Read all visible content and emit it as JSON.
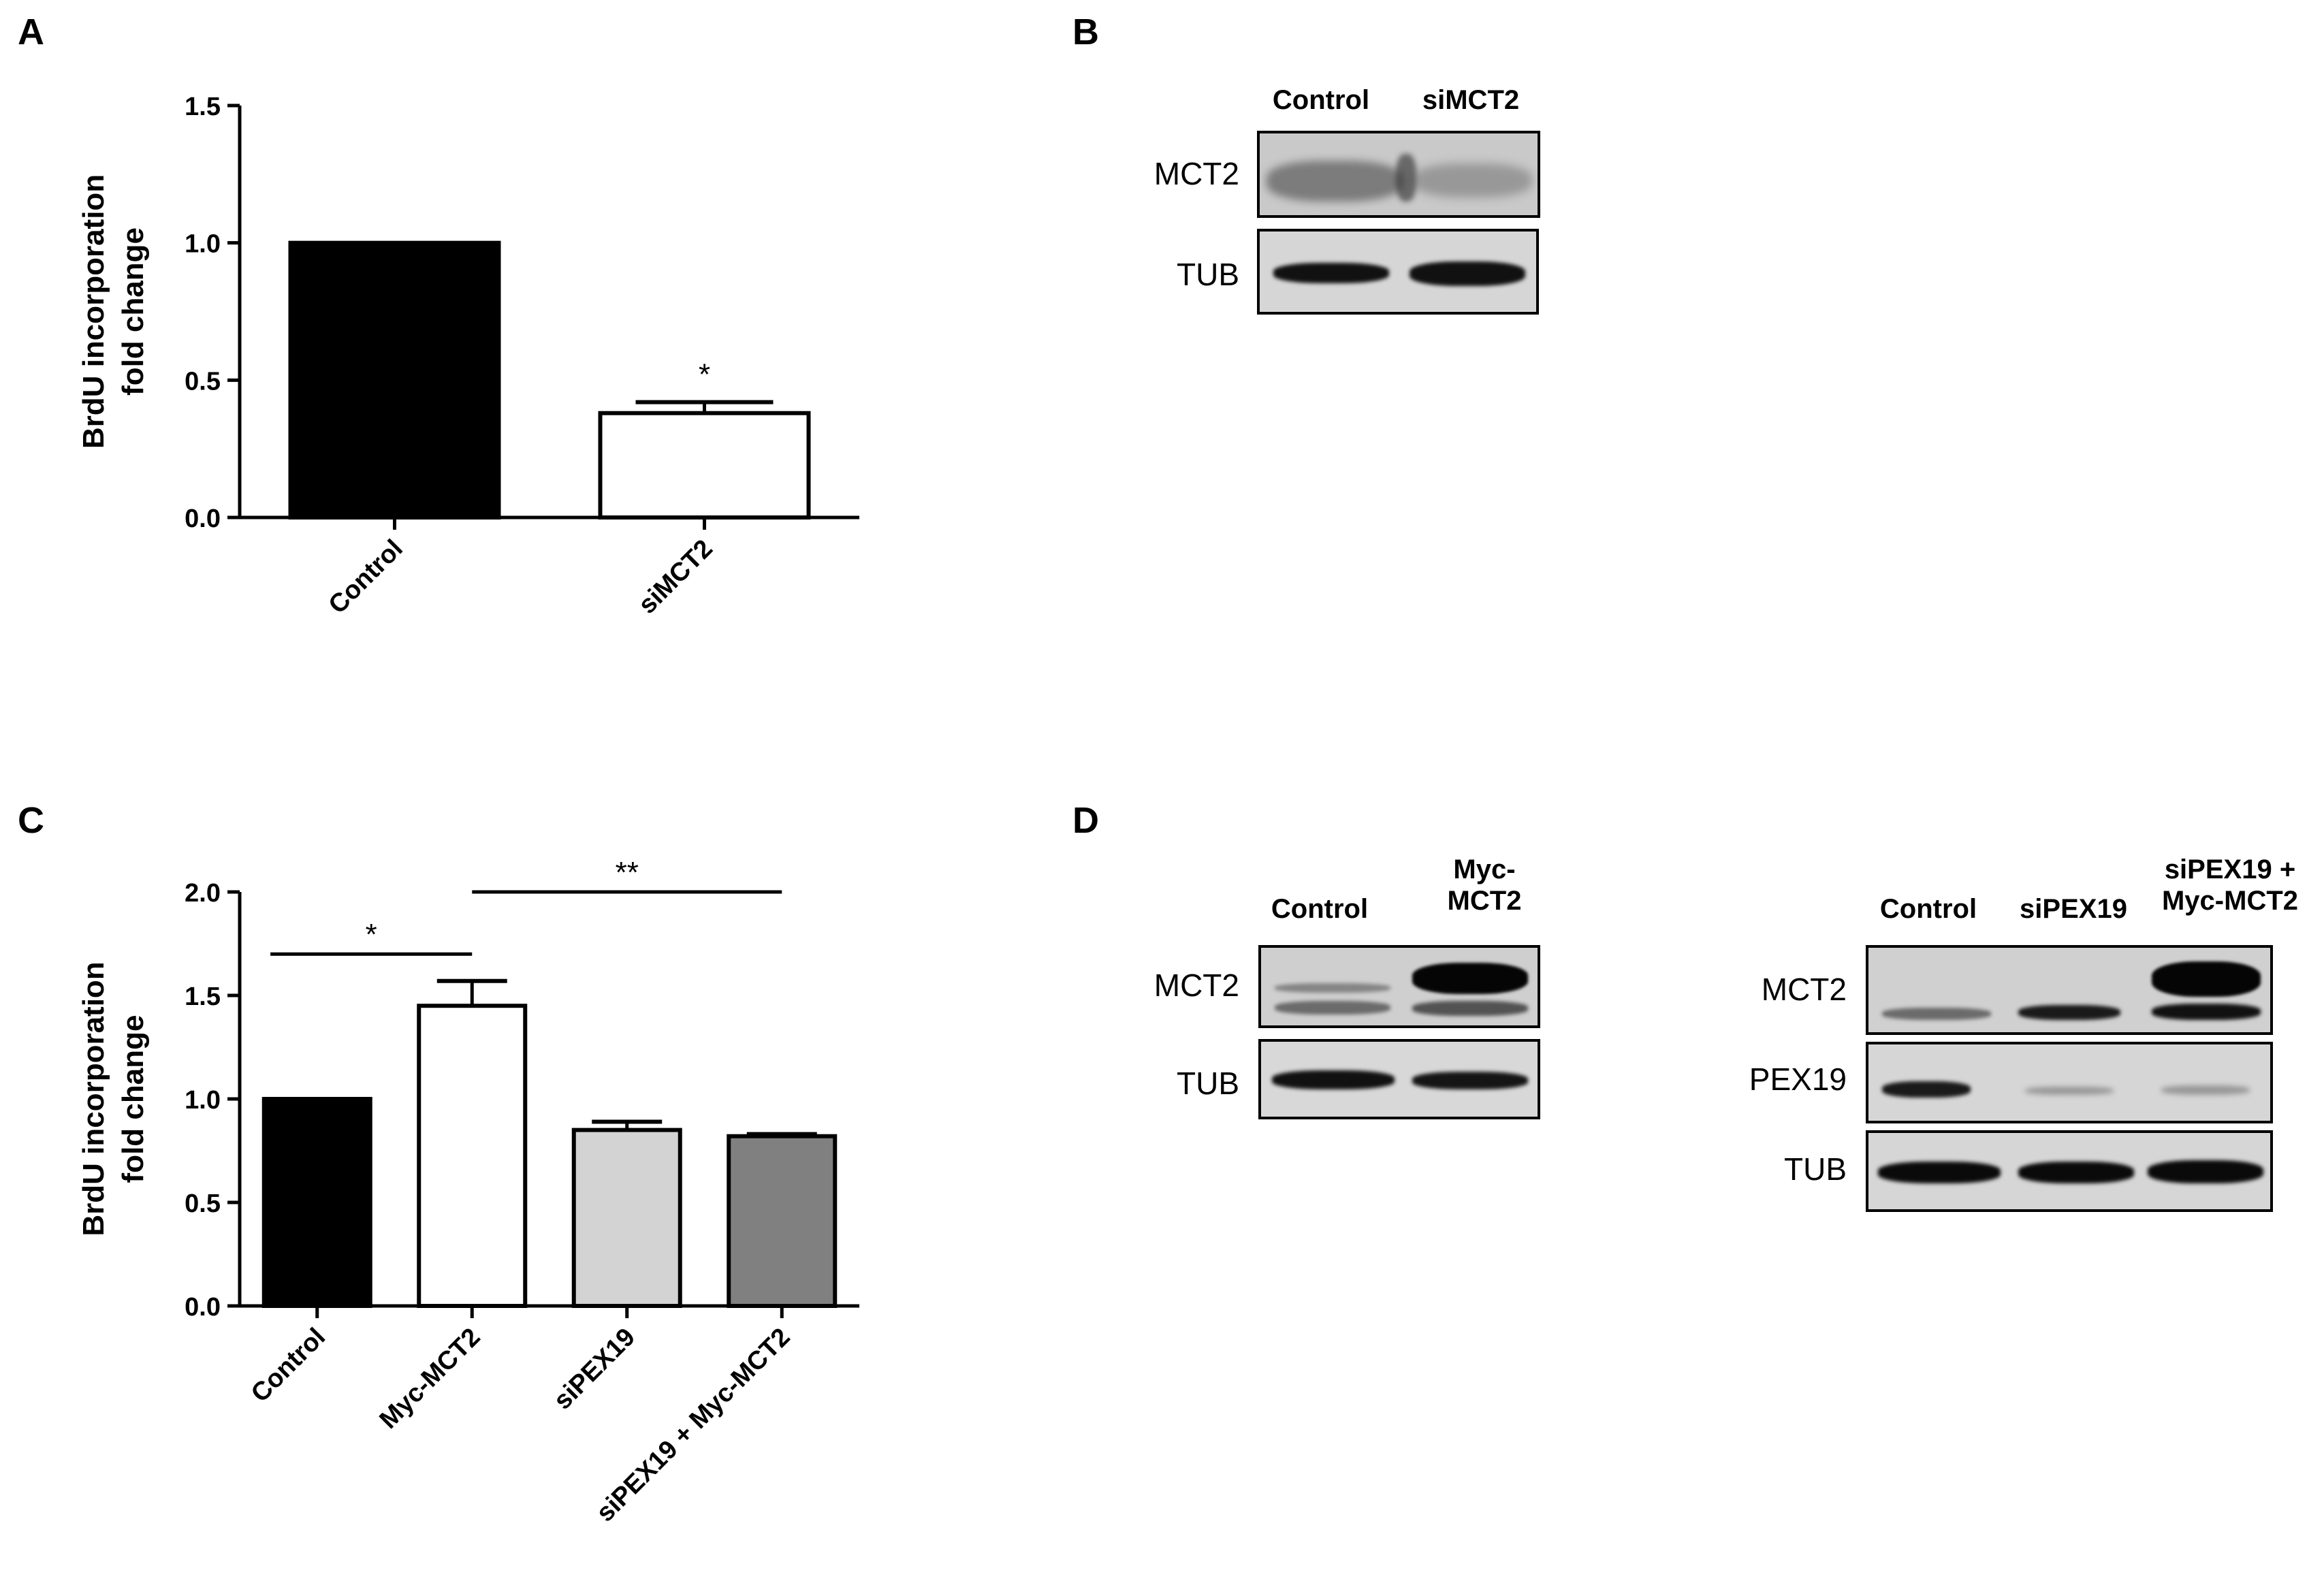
{
  "panels": {
    "A": {
      "letter": "A"
    },
    "B": {
      "letter": "B"
    },
    "C": {
      "letter": "C"
    },
    "D": {
      "letter": "D"
    }
  },
  "chart_data": [
    {
      "panel": "A",
      "type": "bar",
      "ylabel_lines": [
        "BrdU incorporation",
        "fold change"
      ],
      "categories": [
        "Control",
        "siMCT2"
      ],
      "values": [
        1.0,
        0.38
      ],
      "errors": [
        0,
        0.04
      ],
      "bar_colors": [
        "#000000",
        "#ffffff"
      ],
      "ylim": [
        0,
        1.5
      ],
      "yticks": [
        "0.0",
        "0.5",
        "1.0",
        "1.5"
      ],
      "annotations": [
        {
          "text": "*",
          "category": "siMCT2"
        }
      ],
      "grid": false
    },
    {
      "panel": "C",
      "type": "bar",
      "ylabel_lines": [
        "BrdU incorporation",
        "fold change"
      ],
      "categories": [
        "Control",
        "Myc-MCT2",
        "siPEX19",
        "siPEX19 + Myc-MCT2"
      ],
      "values": [
        1.0,
        1.45,
        0.85,
        0.82
      ],
      "errors": [
        0,
        0.12,
        0.04,
        0.01
      ],
      "bar_colors": [
        "#000000",
        "#ffffff",
        "#d3d3d3",
        "#808080"
      ],
      "ylim": [
        0,
        2.0
      ],
      "yticks": [
        "0.0",
        "0.5",
        "1.0",
        "1.5",
        "2.0"
      ],
      "significance": [
        {
          "from": "Control",
          "to": "Myc-MCT2",
          "y": 1.7,
          "text": "*"
        },
        {
          "from": "Myc-MCT2",
          "to": "siPEX19 + Myc-MCT2",
          "y": 2.0,
          "text": "**"
        }
      ],
      "grid": false
    }
  ],
  "blots": {
    "B": {
      "lanes": [
        "Control",
        "siMCT2"
      ],
      "rows": [
        "MCT2",
        "TUB"
      ]
    },
    "D_left": {
      "lanes": [
        "Control",
        "Myc-\nMCT2"
      ],
      "rows": [
        "MCT2",
        "TUB"
      ]
    },
    "D_right": {
      "lanes": [
        "Control",
        "siPEX19",
        "siPEX19 +\nMyc-MCT2"
      ],
      "rows": [
        "MCT2",
        "PEX19",
        "TUB"
      ]
    }
  }
}
